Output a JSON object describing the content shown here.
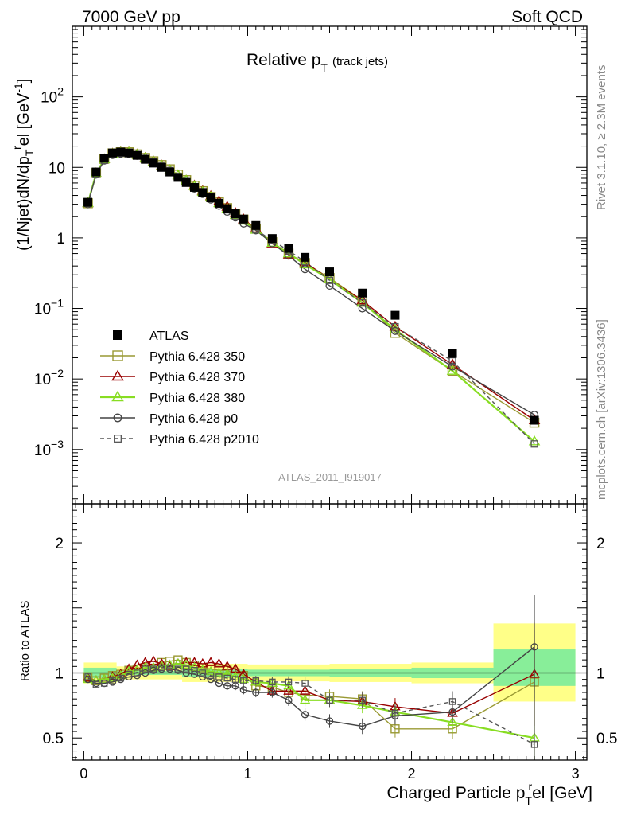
{
  "header": {
    "left": "7000 GeV pp",
    "right": "Soft QCD"
  },
  "side_labels": {
    "rivet": "Rivet 3.1.10, ≥ 2.3M events",
    "mcplots": "mcplots.cern.ch [arXiv:1306.3436]"
  },
  "chart_data": [
    {
      "type": "line",
      "title": "Relative p_T (track jets)",
      "title_main": "Relative p",
      "title_sub": "T",
      "title_extra": "(track jets)",
      "ylabel": "(1/Njet)dN/dp_T^rel [GeV^-1]",
      "ylabel_parts": {
        "a": "(1/Njet)dN/dp",
        "b": "T",
        "c": "r",
        "d": "el [GeV",
        "e": "-1",
        "f": "]"
      },
      "yscale": "log",
      "xlim": [
        -0.07,
        3.07
      ],
      "ylim": [
        0.00017,
        1000
      ],
      "ytick_labels": [
        "10^-3",
        "10^-2",
        "10^-1",
        "1",
        "10",
        "10^2"
      ],
      "analysis_label": "ATLAS_2011_I919017",
      "legend_position": "bottom-left",
      "x": [
        0.025,
        0.075,
        0.125,
        0.175,
        0.225,
        0.275,
        0.325,
        0.375,
        0.425,
        0.475,
        0.525,
        0.575,
        0.625,
        0.675,
        0.725,
        0.775,
        0.825,
        0.875,
        0.925,
        0.975,
        1.05,
        1.15,
        1.25,
        1.35,
        1.5,
        1.7,
        1.9,
        2.25,
        2.75
      ],
      "series": [
        {
          "name": "ATLAS",
          "color": "#000000",
          "marker": "filled-square",
          "values": [
            3.2,
            8.6,
            13.5,
            16.0,
            16.5,
            16.0,
            14.8,
            13.0,
            11.5,
            10.0,
            8.6,
            7.2,
            6.1,
            5.2,
            4.4,
            3.7,
            3.1,
            2.6,
            2.2,
            1.85,
            1.5,
            0.98,
            0.71,
            0.53,
            0.33,
            0.165,
            0.08,
            0.023,
            0.0026
          ]
        },
        {
          "name": "Pythia 6.428 350",
          "color": "#999933",
          "marker": "open-square",
          "values": [
            3.1,
            8.3,
            13.2,
            15.8,
            16.4,
            16.4,
            15.3,
            13.6,
            12.2,
            10.8,
            9.4,
            7.9,
            6.6,
            5.5,
            4.6,
            3.8,
            3.2,
            2.65,
            2.2,
            1.82,
            1.35,
            0.87,
            0.6,
            0.44,
            0.27,
            0.13,
            0.045,
            0.013,
            0.0024
          ]
        },
        {
          "name": "Pythia 6.428 370",
          "color": "#990000",
          "marker": "open-triangle",
          "values": [
            3.1,
            8.2,
            13.0,
            15.6,
            16.3,
            16.3,
            15.2,
            13.6,
            12.1,
            10.6,
            9.1,
            7.7,
            6.5,
            5.5,
            4.6,
            3.9,
            3.3,
            2.75,
            2.25,
            1.82,
            1.35,
            0.83,
            0.58,
            0.45,
            0.26,
            0.13,
            0.055,
            0.016,
            0.0026
          ]
        },
        {
          "name": "Pythia 6.428 380",
          "color": "#88dd22",
          "marker": "open-triangle",
          "values": [
            3.1,
            8.2,
            13.0,
            15.5,
            16.2,
            16.2,
            15.1,
            13.5,
            12.0,
            10.5,
            9.1,
            7.7,
            6.5,
            5.4,
            4.5,
            3.8,
            3.1,
            2.6,
            2.1,
            1.75,
            1.3,
            0.85,
            0.6,
            0.42,
            0.26,
            0.12,
            0.05,
            0.013,
            0.0013
          ]
        },
        {
          "name": "Pythia 6.428 p0",
          "color": "#444444",
          "marker": "open-circle",
          "values": [
            3.0,
            7.9,
            12.5,
            15.0,
            15.6,
            15.6,
            14.6,
            13.1,
            11.7,
            10.3,
            8.9,
            7.3,
            6.1,
            5.0,
            4.2,
            3.5,
            2.85,
            2.35,
            1.95,
            1.6,
            1.28,
            0.84,
            0.56,
            0.36,
            0.21,
            0.1,
            0.048,
            0.015,
            0.0031
          ]
        },
        {
          "name": "Pythia 6.428 p2010",
          "color": "#555555",
          "marker": "small-open-square",
          "dashed": true,
          "values": [
            3.1,
            7.9,
            12.6,
            15.2,
            15.9,
            15.9,
            14.9,
            13.4,
            11.9,
            10.4,
            9.0,
            7.4,
            6.3,
            5.2,
            4.3,
            3.6,
            3.0,
            2.5,
            2.05,
            1.75,
            1.3,
            0.92,
            0.66,
            0.46,
            0.25,
            0.12,
            0.055,
            0.018,
            0.0012
          ]
        }
      ]
    },
    {
      "type": "line",
      "ylabel": "Ratio to ATLAS",
      "xlabel": "Charged Particle p_T^rel [GeV]",
      "xlabel_parts": {
        "a": "Charged Particle p",
        "b": "T",
        "c": "r",
        "d": "el [GeV]"
      },
      "xlim": [
        -0.07,
        3.07
      ],
      "ylim": [
        0.33,
        2.3
      ],
      "xtick_labels": [
        "0",
        "1",
        "2",
        "3"
      ],
      "ytick_labels": [
        "0.5",
        "1",
        "2"
      ],
      "reference_line": 1,
      "x": [
        0.025,
        0.075,
        0.125,
        0.175,
        0.225,
        0.275,
        0.325,
        0.375,
        0.425,
        0.475,
        0.525,
        0.575,
        0.625,
        0.675,
        0.725,
        0.775,
        0.825,
        0.875,
        0.925,
        0.975,
        1.05,
        1.15,
        1.25,
        1.35,
        1.5,
        1.7,
        1.9,
        2.25,
        2.75
      ],
      "bands": [
        {
          "name": "ATLAS uncertainty (outer)",
          "color": "#ffff88",
          "bins": [
            [
              0,
              0.2,
              0.92,
              1.08
            ],
            [
              0.2,
              0.6,
              0.95,
              1.05
            ],
            [
              0.6,
              1.0,
              0.93,
              1.07
            ],
            [
              1.0,
              1.5,
              0.935,
              1.065
            ],
            [
              1.5,
              2.0,
              0.93,
              1.07
            ],
            [
              2.0,
              2.5,
              0.92,
              1.08
            ],
            [
              2.5,
              3.0,
              0.78,
              1.38
            ]
          ]
        },
        {
          "name": "ATLAS uncertainty (inner)",
          "color": "#88ee99",
          "bins": [
            [
              0,
              0.2,
              0.96,
              1.04
            ],
            [
              0.2,
              0.6,
              0.985,
              1.015
            ],
            [
              0.6,
              1.0,
              0.97,
              1.03
            ],
            [
              1.0,
              1.5,
              0.975,
              1.025
            ],
            [
              1.5,
              2.0,
              0.97,
              1.03
            ],
            [
              2.0,
              2.5,
              0.96,
              1.04
            ],
            [
              2.5,
              3.0,
              0.9,
              1.18
            ]
          ]
        }
      ],
      "series": [
        {
          "name": "Pythia 6.428 350",
          "color": "#999933",
          "marker": "open-square",
          "values": [
            0.97,
            0.94,
            0.96,
            0.98,
            0.99,
            1.02,
            1.03,
            1.04,
            1.06,
            1.08,
            1.09,
            1.1,
            1.08,
            1.06,
            1.04,
            1.03,
            1.02,
            1.02,
            1.0,
            0.98,
            0.9,
            0.89,
            0.85,
            0.83,
            0.82,
            0.8,
            0.57,
            0.57,
            0.93
          ]
        },
        {
          "name": "Pythia 6.428 370",
          "color": "#990000",
          "marker": "open-triangle",
          "values": [
            0.96,
            0.94,
            0.95,
            0.97,
            0.99,
            1.03,
            1.06,
            1.08,
            1.09,
            1.07,
            1.05,
            1.07,
            1.08,
            1.08,
            1.07,
            1.08,
            1.07,
            1.05,
            1.03,
            0.99,
            0.93,
            0.86,
            0.86,
            0.86,
            0.79,
            0.78,
            0.74,
            0.69,
            0.99
          ]
        },
        {
          "name": "Pythia 6.428 380",
          "color": "#88dd22",
          "marker": "open-triangle",
          "values": [
            0.95,
            0.94,
            0.95,
            0.96,
            0.98,
            1.01,
            1.02,
            1.04,
            1.04,
            1.05,
            1.06,
            1.07,
            1.06,
            1.04,
            1.02,
            1.01,
            1.0,
            0.99,
            0.97,
            0.95,
            0.93,
            0.92,
            0.9,
            0.79,
            0.79,
            0.75,
            0.7,
            0.62,
            0.5
          ]
        },
        {
          "name": "Pythia 6.428 p0",
          "color": "#444444",
          "marker": "open-circle",
          "values": [
            0.95,
            0.92,
            0.92,
            0.93,
            0.95,
            0.97,
            0.98,
            1.0,
            1.02,
            1.03,
            1.03,
            1.02,
            1.0,
            0.99,
            0.97,
            0.95,
            0.92,
            0.9,
            0.9,
            0.87,
            0.85,
            0.85,
            0.79,
            0.68,
            0.63,
            0.59,
            0.67,
            0.7,
            1.2
          ]
        },
        {
          "name": "Pythia 6.428 p2010",
          "color": "#555555",
          "marker": "small-open-square",
          "dashed": true,
          "values": [
            0.97,
            0.91,
            0.92,
            0.94,
            0.96,
            0.99,
            1.0,
            1.03,
            1.03,
            1.04,
            1.04,
            1.03,
            1.03,
            1.02,
            1.0,
            0.98,
            0.97,
            0.96,
            0.95,
            0.94,
            0.94,
            0.93,
            0.93,
            0.92,
            0.79,
            0.79,
            0.69,
            0.78,
            0.45
          ]
        }
      ]
    }
  ]
}
